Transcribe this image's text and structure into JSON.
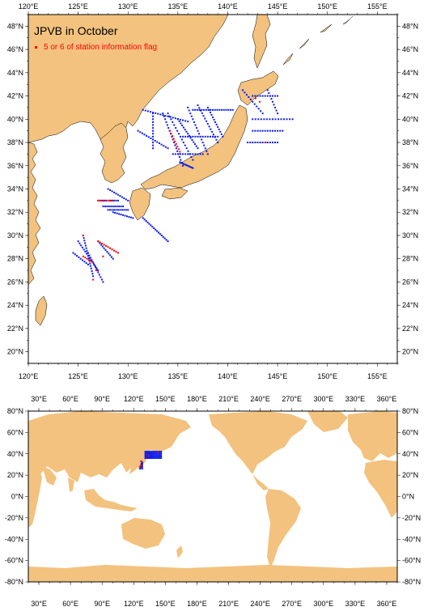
{
  "regional_map": {
    "title": "JPVB in October",
    "legend_label": "5 or 6 of station information flag",
    "lon_ticks": [
      "120°E",
      "125°E",
      "130°E",
      "135°E",
      "140°E",
      "145°E",
      "150°E",
      "155°E"
    ],
    "lat_ticks": [
      "48°N",
      "46°N",
      "44°N",
      "42°N",
      "40°N",
      "38°N",
      "36°N",
      "34°N",
      "32°N",
      "30°N",
      "28°N",
      "26°N",
      "24°N",
      "22°N",
      "20°N"
    ],
    "lon_range": [
      120,
      157
    ],
    "lat_range": [
      19,
      49
    ]
  },
  "global_map": {
    "lon_ticks": [
      "30°E",
      "60°E",
      "90°E",
      "120°E",
      "150°E",
      "180°E",
      "210°E",
      "240°E",
      "270°E",
      "300°E",
      "330°E",
      "360°E"
    ],
    "lat_ticks": [
      "80°N",
      "60°N",
      "40°N",
      "20°N",
      "0°N",
      "-20°N",
      "-40°N",
      "-60°N",
      "-80°N"
    ],
    "lon_range": [
      20,
      370
    ],
    "lat_range": [
      -80,
      80
    ]
  },
  "colors": {
    "land": "#f2c27e",
    "ocean": "#ffffff",
    "station": "#0a1aef",
    "flagged_station": "#ff0000",
    "frame": "#000000"
  }
}
